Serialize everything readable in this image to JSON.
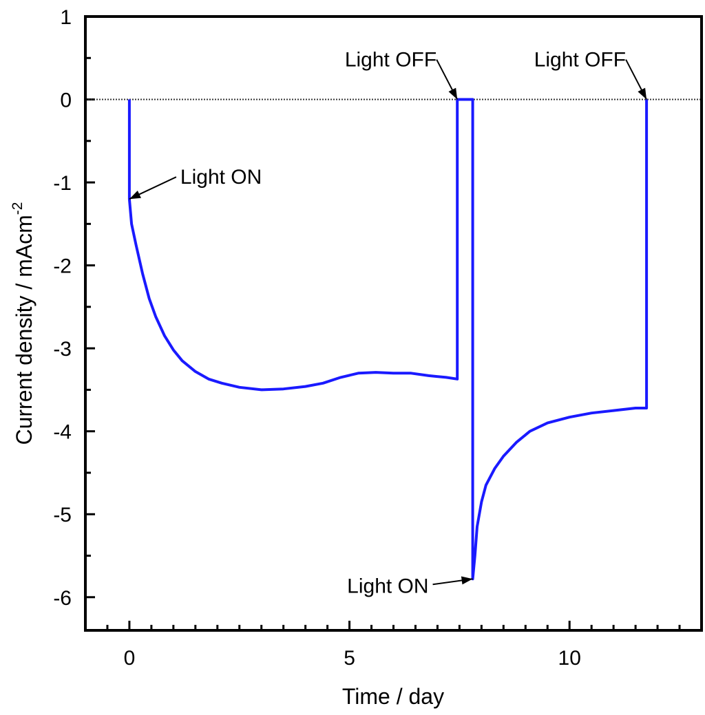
{
  "chart_data": {
    "type": "line",
    "xlabel": "Time / day",
    "ylabel": "Current density / mAcm",
    "ylabel_superscript": "-2",
    "xlim": [
      -1,
      13
    ],
    "ylim": [
      -6.4,
      1
    ],
    "x_ticks": [
      0,
      5,
      10
    ],
    "x_tick_labels": [
      "0",
      "5",
      "10"
    ],
    "x_minor_ticks": [
      -0.5,
      0.5,
      1,
      1.5,
      2,
      2.5,
      3,
      3.5,
      4,
      4.5,
      5.5,
      6,
      6.5,
      7,
      7.5,
      8,
      8.5,
      9,
      9.5,
      10.5,
      11,
      11.5,
      12,
      12.5
    ],
    "y_ticks": [
      1,
      0,
      -1,
      -2,
      -3,
      -4,
      -5,
      -6
    ],
    "y_tick_labels": [
      "1",
      "0",
      "-1",
      "-2",
      "-3",
      "-4",
      "-5",
      "-6"
    ],
    "y_minor_ticks": [
      0.5,
      -0.5,
      -1.5,
      -2.5,
      -3.5,
      -4.5,
      -5.5
    ],
    "reference_line": {
      "y": 0,
      "style": "dotted",
      "color": "#333333"
    },
    "series": [
      {
        "color": "#1a1aff",
        "points": [
          [
            0.0,
            0.0
          ],
          [
            0.0,
            -1.2
          ],
          [
            0.05,
            -1.5
          ],
          [
            0.15,
            -1.75
          ],
          [
            0.3,
            -2.1
          ],
          [
            0.45,
            -2.4
          ],
          [
            0.6,
            -2.62
          ],
          [
            0.8,
            -2.85
          ],
          [
            1.0,
            -3.02
          ],
          [
            1.2,
            -3.15
          ],
          [
            1.5,
            -3.28
          ],
          [
            1.8,
            -3.37
          ],
          [
            2.1,
            -3.42
          ],
          [
            2.5,
            -3.47
          ],
          [
            3.0,
            -3.5
          ],
          [
            3.5,
            -3.49
          ],
          [
            4.0,
            -3.46
          ],
          [
            4.4,
            -3.42
          ],
          [
            4.8,
            -3.35
          ],
          [
            5.2,
            -3.3
          ],
          [
            5.6,
            -3.29
          ],
          [
            6.0,
            -3.3
          ],
          [
            6.4,
            -3.3
          ],
          [
            6.8,
            -3.33
          ],
          [
            7.2,
            -3.35
          ],
          [
            7.45,
            -3.37
          ],
          [
            7.45,
            0.0
          ],
          [
            7.8,
            0.0
          ],
          [
            7.8,
            -5.78
          ],
          [
            7.85,
            -5.5
          ],
          [
            7.9,
            -5.15
          ],
          [
            8.0,
            -4.85
          ],
          [
            8.1,
            -4.65
          ],
          [
            8.3,
            -4.45
          ],
          [
            8.5,
            -4.3
          ],
          [
            8.8,
            -4.13
          ],
          [
            9.1,
            -4.0
          ],
          [
            9.5,
            -3.9
          ],
          [
            10.0,
            -3.83
          ],
          [
            10.5,
            -3.78
          ],
          [
            11.0,
            -3.75
          ],
          [
            11.5,
            -3.72
          ],
          [
            11.75,
            -3.72
          ],
          [
            11.75,
            0.0
          ]
        ]
      }
    ],
    "annotations": [
      {
        "text": "Light ON",
        "arrow_to": [
          0.0,
          -1.2
        ]
      },
      {
        "text": "Light OFF",
        "arrow_to": [
          7.45,
          0.0
        ]
      },
      {
        "text": "Light OFF",
        "arrow_to": [
          11.75,
          0.0
        ]
      },
      {
        "text": "Light ON",
        "arrow_to": [
          7.8,
          -5.78
        ]
      }
    ]
  }
}
